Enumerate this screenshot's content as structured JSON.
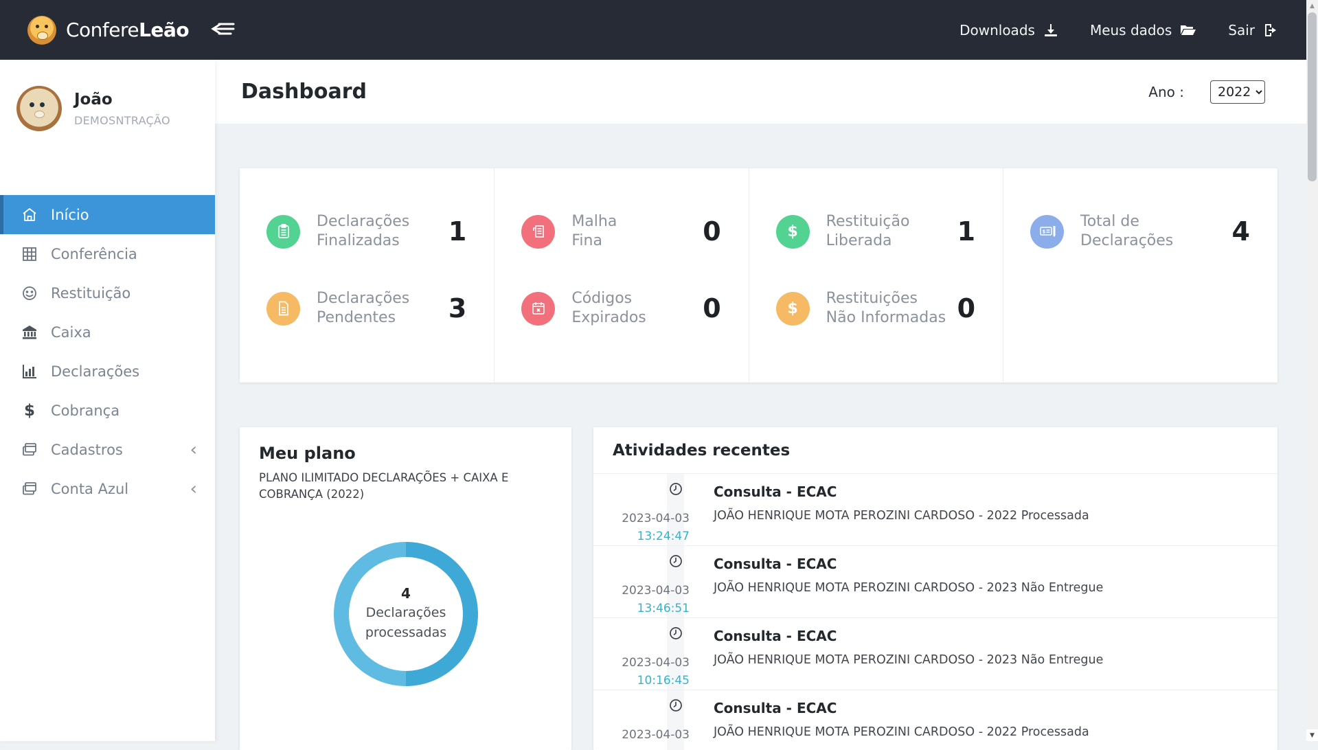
{
  "colors": {
    "navbar_bg": "#272b35",
    "active_menu_blue": "#3d95d9",
    "time_teal": "#36b2c9",
    "donut_left": "#60bbe3",
    "donut_right": "#3ea9d6"
  },
  "navbar": {
    "brand": {
      "normal": "Confere",
      "bold": "Leão"
    },
    "links": [
      {
        "label": "Downloads",
        "icon": "download-icon"
      },
      {
        "label": "Meus dados",
        "icon": "open-folder-icon"
      },
      {
        "label": "Sair",
        "icon": "sign-out-icon"
      }
    ]
  },
  "sidebar": {
    "user": {
      "name": "João",
      "role": "DEMOSNTRAÇÃO"
    },
    "items": [
      {
        "label": "Início",
        "icon": "home-icon",
        "active": true
      },
      {
        "label": "Conferência",
        "icon": "grid-icon"
      },
      {
        "label": "Restituição",
        "icon": "smiley-icon"
      },
      {
        "label": "Caixa",
        "icon": "bank-icon"
      },
      {
        "label": "Declarações",
        "icon": "bar-chart-icon"
      },
      {
        "label": "Cobrança",
        "icon": "dollar-icon"
      },
      {
        "label": "Cadastros",
        "icon": "windows-icon",
        "chevron": "‹"
      },
      {
        "label": "Conta Azul",
        "icon": "windows-icon",
        "chevron": "‹"
      }
    ]
  },
  "header": {
    "title": "Dashboard",
    "year_label": "Ano :",
    "year_value": "2022"
  },
  "stats": [
    {
      "line1": "Declarações",
      "line2": "Finalizadas",
      "value": "1",
      "color": "#52d392",
      "progress": 25,
      "icon": "clipboard-icon"
    },
    {
      "line1": "Declarações",
      "line2": "Pendentes",
      "value": "3",
      "color": "#f5ba63",
      "progress": 75,
      "icon": "document-icon"
    },
    {
      "line1": "Malha",
      "line2": "Fina",
      "value": "0",
      "color": "#f2707b",
      "progress": 0,
      "icon": "receipt-icon"
    },
    {
      "line1": "Códigos",
      "line2": "Expirados",
      "value": "0",
      "color": "#f2707b",
      "progress": 100,
      "icon": "calendar-x-icon"
    },
    {
      "line1": "Restituição",
      "line2": "Liberada",
      "value": "1",
      "color": "#52d392",
      "progress": 25,
      "icon": "dollar-icon"
    },
    {
      "line1": "Restituições",
      "line2": "Não Informadas",
      "value": "0",
      "color": "#f5ba63",
      "progress": 100,
      "icon": "dollar-icon"
    },
    {
      "line1": "Total de",
      "line2": "Declarações",
      "value": "4",
      "color": "#8badea",
      "progress": 100,
      "icon": "cheque-icon"
    }
  ],
  "plan": {
    "title": "Meu plano",
    "description": "PLANO ILIMITADO DECLARAÇÕES + CAIXA E COBRANÇA (2022)",
    "donut": {
      "value": "4",
      "label": "Declarações processadas",
      "segments": [
        {
          "color": "#3ea9d6",
          "pct": 50
        },
        {
          "color": "#60bbe3",
          "pct": 50
        }
      ]
    }
  },
  "activities": {
    "title": "Atividades recentes",
    "items": [
      {
        "date": "2023-04-03",
        "time": "13:24:47",
        "title": "Consulta - ECAC",
        "text": "JOÃO HENRIQUE MOTA PEROZINI CARDOSO - 2022 Processada"
      },
      {
        "date": "2023-04-03",
        "time": "13:46:51",
        "title": "Consulta - ECAC",
        "text": "JOÃO HENRIQUE MOTA PEROZINI CARDOSO - 2023 Não Entregue"
      },
      {
        "date": "2023-04-03",
        "time": "10:16:45",
        "title": "Consulta - ECAC",
        "text": "JOÃO HENRIQUE MOTA PEROZINI CARDOSO - 2023 Não Entregue"
      },
      {
        "date": "2023-04-03",
        "time": "",
        "title": "Consulta - ECAC",
        "text": "JOÃO HENRIQUE MOTA PEROZINI CARDOSO - 2022 Processada"
      }
    ]
  }
}
